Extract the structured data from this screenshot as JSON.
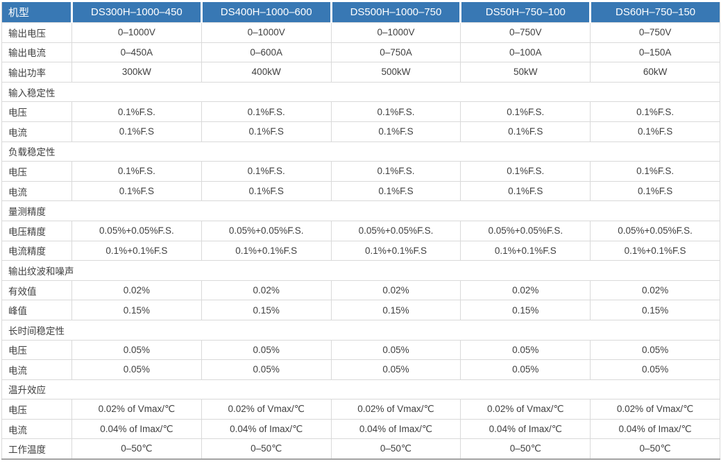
{
  "table": {
    "colors": {
      "header_bg": "#3878b4",
      "header_text": "#ffffff",
      "border": "#d9d9d9",
      "bottom_border": "#a3a3a3",
      "body_text": "#3f3f3f"
    },
    "header": {
      "label": "机型",
      "models": [
        "DS300H–1000–450",
        "DS400H–1000–600",
        "DS500H–1000–750",
        "DS50H–750–100",
        "DS60H–750–150"
      ]
    },
    "rows": [
      {
        "type": "data",
        "label": "输出电压",
        "values": [
          "0–1000V",
          "0–1000V",
          "0–1000V",
          "0–750V",
          "0–750V"
        ]
      },
      {
        "type": "data",
        "label": "输出电流",
        "values": [
          "0–450A",
          "0–600A",
          "0–750A",
          "0–100A",
          "0–150A"
        ]
      },
      {
        "type": "data",
        "label": "输出功率",
        "values": [
          "300kW",
          "400kW",
          "500kW",
          "50kW",
          "60kW"
        ]
      },
      {
        "type": "section",
        "label": "输入稳定性"
      },
      {
        "type": "data",
        "label": "电压",
        "values": [
          "0.1%F.S.",
          "0.1%F.S.",
          "0.1%F.S.",
          "0.1%F.S.",
          "0.1%F.S."
        ]
      },
      {
        "type": "data",
        "label": "电流",
        "values": [
          "0.1%F.S",
          "0.1%F.S",
          "0.1%F.S",
          "0.1%F.S",
          "0.1%F.S"
        ]
      },
      {
        "type": "section",
        "label": "负载稳定性"
      },
      {
        "type": "data",
        "label": "电压",
        "values": [
          "0.1%F.S.",
          "0.1%F.S.",
          "0.1%F.S.",
          "0.1%F.S.",
          "0.1%F.S."
        ]
      },
      {
        "type": "data",
        "label": "电流",
        "values": [
          "0.1%F.S",
          "0.1%F.S",
          "0.1%F.S",
          "0.1%F.S",
          "0.1%F.S"
        ]
      },
      {
        "type": "section",
        "label": "量测精度"
      },
      {
        "type": "data",
        "label": "电压精度",
        "values": [
          "0.05%+0.05%F.S.",
          "0.05%+0.05%F.S.",
          "0.05%+0.05%F.S.",
          "0.05%+0.05%F.S.",
          "0.05%+0.05%F.S."
        ]
      },
      {
        "type": "data",
        "label": "电流精度",
        "values": [
          "0.1%+0.1%F.S",
          "0.1%+0.1%F.S",
          "0.1%+0.1%F.S",
          "0.1%+0.1%F.S",
          "0.1%+0.1%F.S"
        ]
      },
      {
        "type": "section",
        "label": "输出纹波和噪声"
      },
      {
        "type": "data",
        "label": "有效值",
        "values": [
          "0.02%",
          "0.02%",
          "0.02%",
          "0.02%",
          "0.02%"
        ]
      },
      {
        "type": "data",
        "label": "峰值",
        "values": [
          "0.15%",
          "0.15%",
          "0.15%",
          "0.15%",
          "0.15%"
        ]
      },
      {
        "type": "section",
        "label": "长时间稳定性"
      },
      {
        "type": "data",
        "label": "电压",
        "values": [
          "0.05%",
          "0.05%",
          "0.05%",
          "0.05%",
          "0.05%"
        ]
      },
      {
        "type": "data",
        "label": "电流",
        "values": [
          "0.05%",
          "0.05%",
          "0.05%",
          "0.05%",
          "0.05%"
        ]
      },
      {
        "type": "section",
        "label": "温升效应"
      },
      {
        "type": "data",
        "label": "电压",
        "values": [
          "0.02% of Vmax/℃",
          "0.02% of Vmax/℃",
          "0.02% of Vmax/℃",
          "0.02% of Vmax/℃",
          "0.02% of Vmax/℃"
        ]
      },
      {
        "type": "data",
        "label": "电流",
        "values": [
          "0.04% of Imax/℃",
          "0.04% of Imax/℃",
          "0.04% of Imax/℃",
          "0.04% of Imax/℃",
          "0.04% of Imax/℃"
        ]
      },
      {
        "type": "data",
        "label": "工作温度",
        "values": [
          "0–50℃",
          "0–50℃",
          "0–50℃",
          "0–50℃",
          "0–50℃"
        ]
      }
    ]
  }
}
